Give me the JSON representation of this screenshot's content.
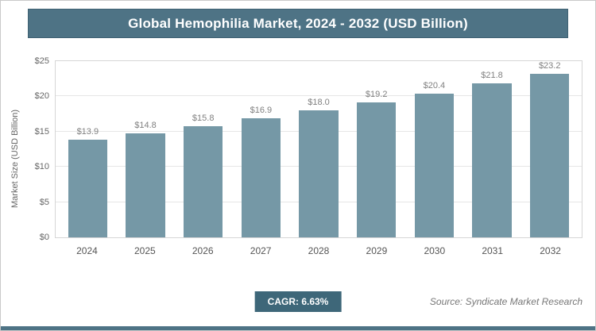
{
  "title": "Global Hemophilia Market, 2024 - 2032 (USD Billion)",
  "footer": {
    "cagr_label": "CAGR: 6.63%",
    "source": "Source: Syndicate Market Research"
  },
  "colors": {
    "banner_bg": "#4e7385",
    "bar": "#7598a6",
    "cagr_bg": "#3e6779",
    "accent_strip": "#4e7385"
  },
  "chart_data": {
    "type": "bar",
    "title": "Global Hemophilia Market, 2024 - 2032 (USD Billion)",
    "categories": [
      "2024",
      "2025",
      "2026",
      "2027",
      "2028",
      "2029",
      "2030",
      "2031",
      "2032"
    ],
    "values": [
      13.9,
      14.8,
      15.8,
      16.9,
      18.0,
      19.2,
      20.4,
      21.8,
      23.2
    ],
    "value_labels": [
      "$13.9",
      "$14.8",
      "$15.8",
      "$16.9",
      "$18.0",
      "$19.2",
      "$20.4",
      "$21.8",
      "$23.2"
    ],
    "xlabel": "",
    "ylabel": "Market Size (USD Billion)",
    "ylim": [
      0,
      25
    ],
    "yticks": [
      "$0",
      "$5",
      "$10",
      "$15",
      "$20",
      "$25"
    ],
    "grid": true,
    "legend": "none",
    "bar_color": "#7598a6"
  }
}
